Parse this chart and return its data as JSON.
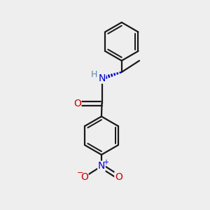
{
  "bg_color": "#eeeeee",
  "bond_color": "#1a1a1a",
  "atom_colors": {
    "O_carbonyl": "#cc0000",
    "O_nitro": "#cc0000",
    "N_amine": "#0000cc",
    "N_nitro": "#0000cc",
    "H_amine": "#5588aa"
  },
  "line_width": 1.6,
  "font_size_atoms": 9,
  "fig_size": [
    3.0,
    3.0
  ],
  "dpi": 100,
  "xlim": [
    0,
    10
  ],
  "ylim": [
    0,
    10
  ]
}
